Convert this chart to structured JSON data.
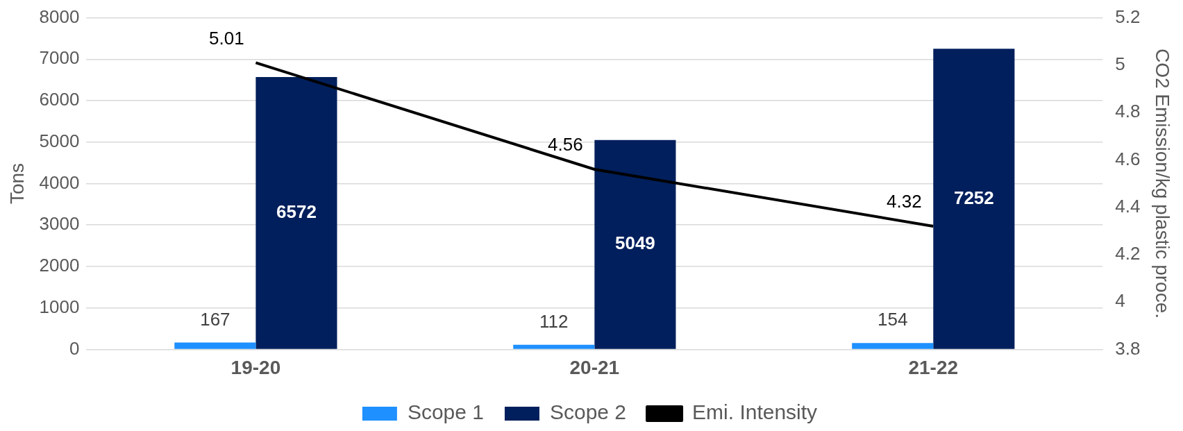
{
  "chart_data": {
    "type": "bar",
    "ylabel": "Tons",
    "y2label": "CO2 Emission/kg plastic proce.",
    "categories": [
      "19-20",
      "20-21",
      "21-22"
    ],
    "series": [
      {
        "name": "Scope 1",
        "color": "#1e90ff",
        "values": [
          167,
          112,
          154
        ]
      },
      {
        "name": "Scope 2",
        "color": "#001f5c",
        "values": [
          6572,
          5049,
          7252
        ]
      },
      {
        "name": "Emi. Intensity",
        "type": "line",
        "axis": "y2",
        "color": "#000000",
        "values": [
          5.01,
          4.56,
          4.32
        ]
      }
    ],
    "ylim": [
      0,
      8000
    ],
    "yticks": [
      0,
      1000,
      2000,
      3000,
      4000,
      5000,
      6000,
      7000,
      8000
    ],
    "y2lim": [
      3.8,
      5.2
    ],
    "y2ticks": [
      3.8,
      4,
      4.2,
      4.4,
      4.6,
      4.8,
      5,
      5.2
    ],
    "grid": "y",
    "legend": "bottom",
    "data_labels": true,
    "marker": "none",
    "line_style": "solid"
  }
}
